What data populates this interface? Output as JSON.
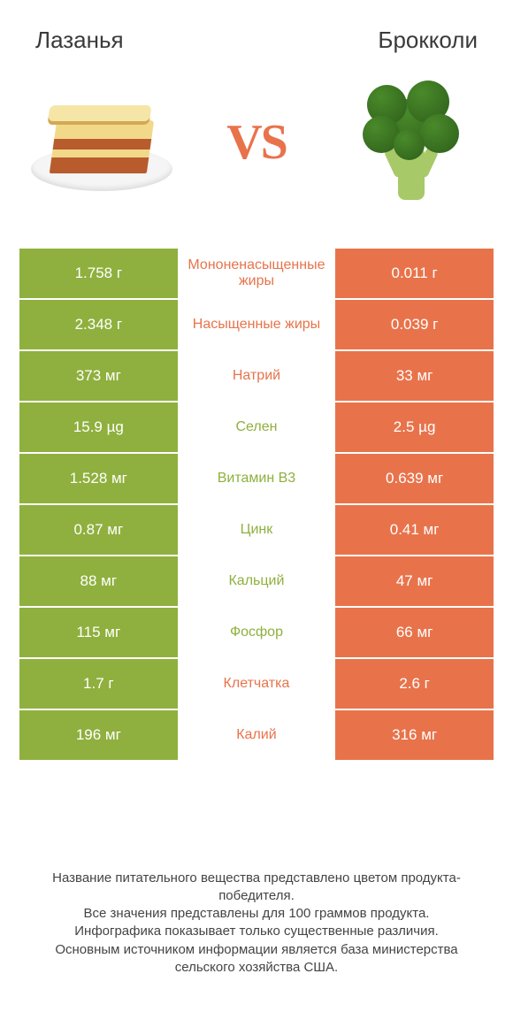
{
  "header": {
    "left_title": "Лазанья",
    "right_title": "Брокколи",
    "vs_label": "VS"
  },
  "colors": {
    "left_product": "#8fb03e",
    "right_product": "#e8734b",
    "row_text": "#ffffff",
    "background": "#ffffff",
    "footer_text": "#444444"
  },
  "table": {
    "rows": [
      {
        "left": "1.758 г",
        "label": "Мононенасыщенные жиры",
        "right": "0.011 г",
        "winner": "right"
      },
      {
        "left": "2.348 г",
        "label": "Насыщенные жиры",
        "right": "0.039 г",
        "winner": "right"
      },
      {
        "left": "373 мг",
        "label": "Натрий",
        "right": "33 мг",
        "winner": "right"
      },
      {
        "left": "15.9 µg",
        "label": "Селен",
        "right": "2.5 µg",
        "winner": "left"
      },
      {
        "left": "1.528 мг",
        "label": "Витамин B3",
        "right": "0.639 мг",
        "winner": "left"
      },
      {
        "left": "0.87 мг",
        "label": "Цинк",
        "right": "0.41 мг",
        "winner": "left"
      },
      {
        "left": "88 мг",
        "label": "Кальций",
        "right": "47 мг",
        "winner": "left"
      },
      {
        "left": "115 мг",
        "label": "Фосфор",
        "right": "66 мг",
        "winner": "left"
      },
      {
        "left": "1.7 г",
        "label": "Клетчатка",
        "right": "2.6 г",
        "winner": "right"
      },
      {
        "left": "196 мг",
        "label": "Калий",
        "right": "316 мг",
        "winner": "right"
      }
    ]
  },
  "footer": {
    "line1": "Название питательного вещества представлено цветом продукта-победителя.",
    "line2": "Все значения представлены для 100 граммов продукта.",
    "line3": "Инфографика показывает только существенные различия.",
    "line4": "Основным источником информации является база министерства сельского хозяйства США."
  }
}
